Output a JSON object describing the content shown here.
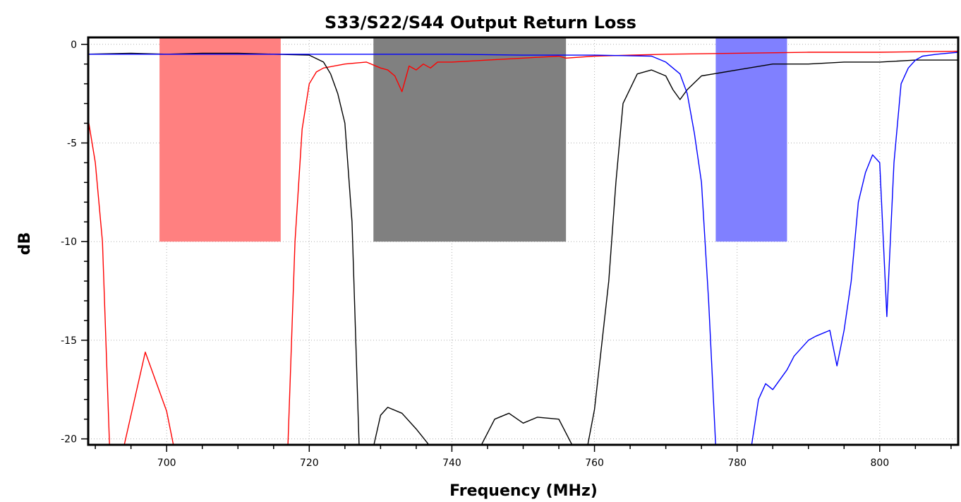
{
  "chart_data": {
    "type": "line",
    "title": "S33/S22/S44 Output Return Loss",
    "xlabel": "Frequency (MHz)",
    "ylabel": "dB",
    "xlim": [
      689,
      811
    ],
    "ylim": [
      -20.3,
      0.35
    ],
    "x_major_ticks": [
      700,
      720,
      740,
      760,
      780,
      800
    ],
    "x_minor_step": 5,
    "y_major_ticks": [
      0,
      -5,
      -10,
      -15,
      -20
    ],
    "y_minor_step": 1,
    "grid": true,
    "bands": [
      {
        "x": [
          699,
          716
        ],
        "y": [
          -10,
          0.35
        ],
        "color": "#ff8080"
      },
      {
        "x": [
          729,
          756
        ],
        "y": [
          -10,
          0.35
        ],
        "color": "#808080"
      },
      {
        "x": [
          777,
          787
        ],
        "y": [
          -10,
          0.35
        ],
        "color": "#8080ff"
      }
    ],
    "series": [
      {
        "color": "#ff0000",
        "x": [
          689,
          690,
          691,
          692,
          693,
          694,
          697,
          700,
          701,
          717,
          718,
          719,
          720,
          721,
          722,
          725,
          728,
          730,
          731,
          732,
          733,
          734,
          735,
          736,
          737,
          738,
          740,
          745,
          750,
          755,
          756,
          760,
          770,
          780,
          790,
          800,
          811
        ],
        "y": [
          -3.8,
          -6,
          -10,
          -20.4,
          -20.4,
          -20.4,
          -15.6,
          -18.6,
          -20.4,
          -20.4,
          -10,
          -4.3,
          -2.0,
          -1.4,
          -1.2,
          -1.0,
          -0.9,
          -1.2,
          -1.3,
          -1.6,
          -2.4,
          -1.1,
          -1.3,
          -1.0,
          -1.2,
          -0.9,
          -0.9,
          -0.8,
          -0.7,
          -0.6,
          -0.7,
          -0.6,
          -0.5,
          -0.45,
          -0.4,
          -0.4,
          -0.35
        ]
      },
      {
        "color": "#000000",
        "x": [
          689,
          695,
          700,
          705,
          710,
          715,
          720,
          722,
          723,
          724,
          725,
          726,
          727,
          729,
          730,
          731,
          733,
          735,
          737,
          740,
          744,
          746,
          748,
          750,
          752,
          755,
          757,
          759,
          760,
          762,
          763,
          764,
          766,
          768,
          770,
          771,
          772,
          773,
          775,
          780,
          785,
          790,
          795,
          800,
          805,
          811
        ],
        "y": [
          -0.5,
          -0.45,
          -0.5,
          -0.45,
          -0.45,
          -0.5,
          -0.55,
          -0.9,
          -1.5,
          -2.5,
          -4,
          -9,
          -20.4,
          -20.4,
          -18.8,
          -18.4,
          -18.7,
          -19.5,
          -20.4,
          -20.4,
          -20.4,
          -19,
          -18.7,
          -19.2,
          -18.9,
          -19.0,
          -20.4,
          -20.4,
          -18.5,
          -12,
          -7,
          -3,
          -1.5,
          -1.3,
          -1.6,
          -2.3,
          -2.8,
          -2.3,
          -1.6,
          -1.3,
          -1.0,
          -1.0,
          -0.9,
          -0.9,
          -0.8,
          -0.8
        ]
      },
      {
        "color": "#0000ff",
        "x": [
          689,
          700,
          710,
          720,
          730,
          740,
          750,
          760,
          768,
          770,
          772,
          773,
          774,
          775,
          776,
          777,
          778,
          780,
          782,
          783,
          784,
          785,
          786,
          787,
          788,
          790,
          791,
          793,
          794,
          795,
          796,
          797,
          798,
          799,
          800,
          801,
          802,
          803,
          804,
          805,
          806,
          808,
          811
        ],
        "y": [
          -0.5,
          -0.5,
          -0.5,
          -0.5,
          -0.5,
          -0.5,
          -0.55,
          -0.55,
          -0.6,
          -0.9,
          -1.5,
          -2.5,
          -4.5,
          -7,
          -13,
          -20.4,
          -20.4,
          -20.4,
          -20.4,
          -18,
          -17.2,
          -17.5,
          -17.0,
          -16.5,
          -15.8,
          -15.0,
          -14.8,
          -14.5,
          -16.3,
          -14.5,
          -12,
          -8,
          -6.5,
          -5.6,
          -6.0,
          -13.8,
          -6.0,
          -2.0,
          -1.2,
          -0.8,
          -0.6,
          -0.5,
          -0.4
        ]
      }
    ]
  }
}
